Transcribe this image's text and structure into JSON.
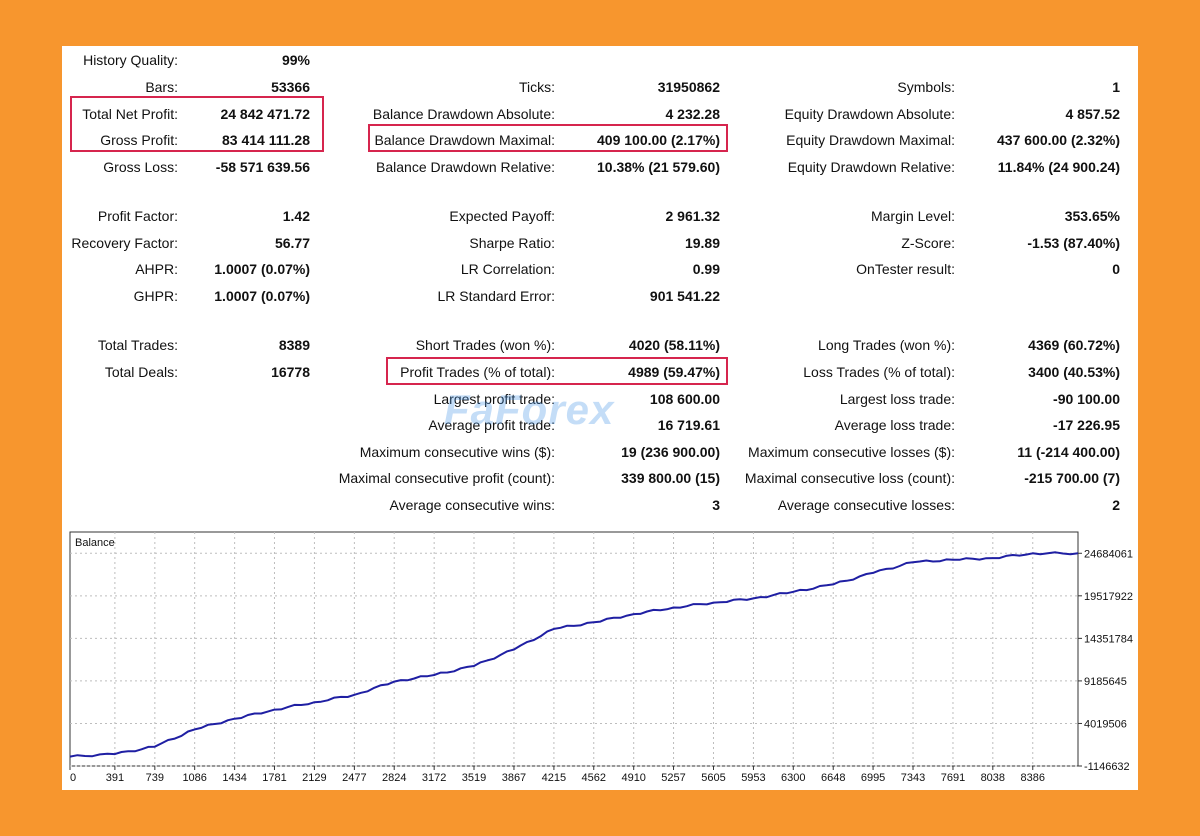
{
  "colors": {
    "background": "#f7962e",
    "highlight": "#d6254e",
    "balance_line": "#1f1fa3",
    "grid": "#bdbdbd"
  },
  "watermark": "FaForex",
  "stats": {
    "col1": [
      {
        "label": "History Quality:",
        "value": "99%"
      },
      {
        "label": "Bars:",
        "value": "53366"
      },
      {
        "label": "Total Net Profit:",
        "value": "24 842 471.72"
      },
      {
        "label": "Gross Profit:",
        "value": "83 414 111.28"
      },
      {
        "label": "Gross Loss:",
        "value": "-58 571 639.56"
      },
      {
        "label": "Profit Factor:",
        "value": "1.42"
      },
      {
        "label": "Recovery Factor:",
        "value": "56.77"
      },
      {
        "label": "AHPR:",
        "value": "1.0007 (0.07%)"
      },
      {
        "label": "GHPR:",
        "value": "1.0007 (0.07%)"
      },
      {
        "label": "Total Trades:",
        "value": "8389"
      },
      {
        "label": "Total Deals:",
        "value": "16778"
      }
    ],
    "col2": [
      {
        "label": "Ticks:",
        "value": "31950862"
      },
      {
        "label": "Balance Drawdown Absolute:",
        "value": "4 232.28"
      },
      {
        "label": "Balance Drawdown Maximal:",
        "value": "409 100.00 (2.17%)"
      },
      {
        "label": "Balance Drawdown Relative:",
        "value": "10.38% (21 579.60)"
      },
      {
        "label": "Expected Payoff:",
        "value": "2 961.32"
      },
      {
        "label": "Sharpe Ratio:",
        "value": "19.89"
      },
      {
        "label": "LR Correlation:",
        "value": "0.99"
      },
      {
        "label": "LR Standard Error:",
        "value": "901 541.22"
      },
      {
        "label": "Short Trades (won %):",
        "value": "4020 (58.11%)"
      },
      {
        "label": "Profit Trades (% of total):",
        "value": "4989 (59.47%)"
      },
      {
        "label": "Largest profit trade:",
        "value": "108 600.00"
      },
      {
        "label": "Average profit trade:",
        "value": "16 719.61"
      },
      {
        "label": "Maximum consecutive wins ($):",
        "value": "19 (236 900.00)"
      },
      {
        "label": "Maximal consecutive profit (count):",
        "value": "339 800.00 (15)"
      },
      {
        "label": "Average consecutive wins:",
        "value": "3"
      }
    ],
    "col3": [
      {
        "label": "Symbols:",
        "value": "1"
      },
      {
        "label": "Equity Drawdown Absolute:",
        "value": "4 857.52"
      },
      {
        "label": "Equity Drawdown Maximal:",
        "value": "437 600.00 (2.32%)"
      },
      {
        "label": "Equity Drawdown Relative:",
        "value": "11.84% (24 900.24)"
      },
      {
        "label": "Margin Level:",
        "value": "353.65%"
      },
      {
        "label": "Z-Score:",
        "value": "-1.53 (87.40%)"
      },
      {
        "label": "OnTester result:",
        "value": "0"
      },
      {
        "label": "Long Trades (won %):",
        "value": "4369 (60.72%)"
      },
      {
        "label": "Loss Trades (% of total):",
        "value": "3400 (40.53%)"
      },
      {
        "label": "Largest loss trade:",
        "value": "-90 100.00"
      },
      {
        "label": "Average loss trade:",
        "value": "-17 226.95"
      },
      {
        "label": "Maximum consecutive losses ($):",
        "value": "11 (-214 400.00)"
      },
      {
        "label": "Maximal consecutive loss (count):",
        "value": "-215 700.00 (7)"
      },
      {
        "label": "Average consecutive losses:",
        "value": "2"
      }
    ]
  },
  "chart_data": {
    "type": "line",
    "title": "Balance",
    "x_ticks": [
      "0",
      "391",
      "739",
      "1086",
      "1434",
      "1781",
      "2129",
      "2477",
      "2824",
      "3172",
      "3519",
      "3867",
      "4215",
      "4562",
      "4910",
      "5257",
      "5605",
      "5953",
      "6300",
      "6648",
      "6995",
      "7343",
      "7691",
      "8038",
      "8386"
    ],
    "y_ticks": [
      "24684061",
      "19517922",
      "14351784",
      "9185645",
      "4019506",
      "-1146632"
    ],
    "xlim": [
      0,
      8780
    ],
    "ylim": [
      -1146632,
      27267130
    ],
    "series": [
      {
        "name": "Balance",
        "x": [
          0,
          391,
          739,
          1086,
          1434,
          1781,
          2129,
          2477,
          2824,
          3172,
          3519,
          3867,
          4215,
          4562,
          4910,
          5257,
          5605,
          5953,
          6300,
          6648,
          6995,
          7343,
          7691,
          8038,
          8386,
          8780
        ],
        "y": [
          0,
          300000,
          1200000,
          3300000,
          4600000,
          5700000,
          6600000,
          7500000,
          9100000,
          9900000,
          11000000,
          13000000,
          15500000,
          16300000,
          17300000,
          18100000,
          18700000,
          19200000,
          20000000,
          20900000,
          22300000,
          23600000,
          23900000,
          24100000,
          24684061,
          24684061
        ]
      }
    ]
  }
}
